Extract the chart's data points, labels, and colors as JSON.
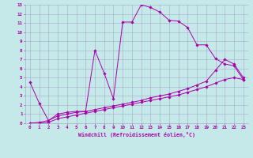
{
  "xlabel": "Windchill (Refroidissement éolien,°C)",
  "xlim": [
    -0.5,
    23.5
  ],
  "ylim": [
    0,
    13
  ],
  "xticks": [
    0,
    1,
    2,
    3,
    4,
    5,
    6,
    7,
    8,
    9,
    10,
    11,
    12,
    13,
    14,
    15,
    16,
    17,
    18,
    19,
    20,
    21,
    22,
    23
  ],
  "yticks": [
    0,
    1,
    2,
    3,
    4,
    5,
    6,
    7,
    8,
    9,
    10,
    11,
    12,
    13
  ],
  "background_color": "#c5e8e8",
  "line_color": "#aa00aa",
  "grid_color": "#aaaacc",
  "line1_x": [
    0,
    1,
    2,
    3,
    4,
    5,
    6,
    7,
    8,
    9,
    10,
    11,
    12,
    13,
    14,
    15,
    16,
    17,
    18,
    19,
    20,
    21,
    22,
    23
  ],
  "line1_y": [
    4.5,
    2.2,
    0.3,
    1.0,
    1.2,
    1.3,
    1.3,
    8.0,
    5.5,
    2.7,
    11.1,
    11.1,
    13.0,
    12.7,
    12.2,
    11.3,
    11.2,
    10.5,
    8.6,
    8.6,
    7.1,
    6.5,
    6.3,
    4.8
  ],
  "line2_x": [
    0,
    1,
    2,
    3,
    4,
    5,
    6,
    7,
    8,
    9,
    10,
    11,
    12,
    13,
    14,
    15,
    16,
    17,
    18,
    19,
    20,
    21,
    22,
    23
  ],
  "line2_y": [
    0.0,
    0.1,
    0.3,
    0.8,
    1.0,
    1.2,
    1.3,
    1.5,
    1.7,
    1.9,
    2.1,
    2.3,
    2.5,
    2.8,
    3.0,
    3.2,
    3.5,
    3.8,
    4.2,
    4.6,
    5.8,
    7.0,
    6.5,
    5.0
  ],
  "line3_x": [
    0,
    1,
    2,
    3,
    4,
    5,
    6,
    7,
    8,
    9,
    10,
    11,
    12,
    13,
    14,
    15,
    16,
    17,
    18,
    19,
    20,
    21,
    22,
    23
  ],
  "line3_y": [
    0.0,
    0.0,
    0.1,
    0.5,
    0.7,
    0.9,
    1.1,
    1.3,
    1.5,
    1.7,
    1.9,
    2.1,
    2.3,
    2.5,
    2.7,
    2.9,
    3.1,
    3.4,
    3.7,
    4.0,
    4.4,
    4.8,
    5.0,
    4.8
  ]
}
